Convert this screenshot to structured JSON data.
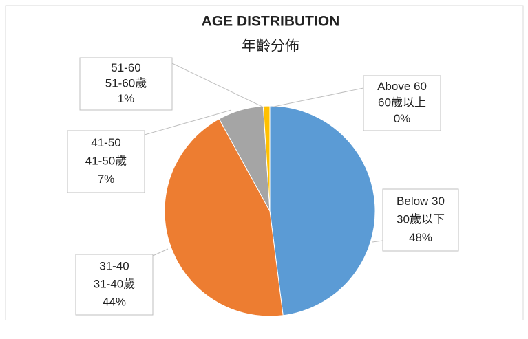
{
  "chart_data": {
    "type": "pie",
    "title": "AGE DISTRIBUTION",
    "subtitle": "年齡分佈",
    "categories": [
      "Below 30",
      "31-40",
      "41-50",
      "51-60",
      "Above 60"
    ],
    "categories_zh": [
      "30歲以下",
      "31-40歲",
      "41-50歲",
      "51-60歲",
      "60歲以上"
    ],
    "values": [
      48,
      44,
      7,
      1,
      0
    ],
    "value_labels": [
      "48%",
      "44%",
      "7%",
      "1%",
      "0%"
    ],
    "colors": [
      "#5b9bd5",
      "#ed7d31",
      "#a5a5a5",
      "#ffc000",
      "#4472c4"
    ]
  }
}
